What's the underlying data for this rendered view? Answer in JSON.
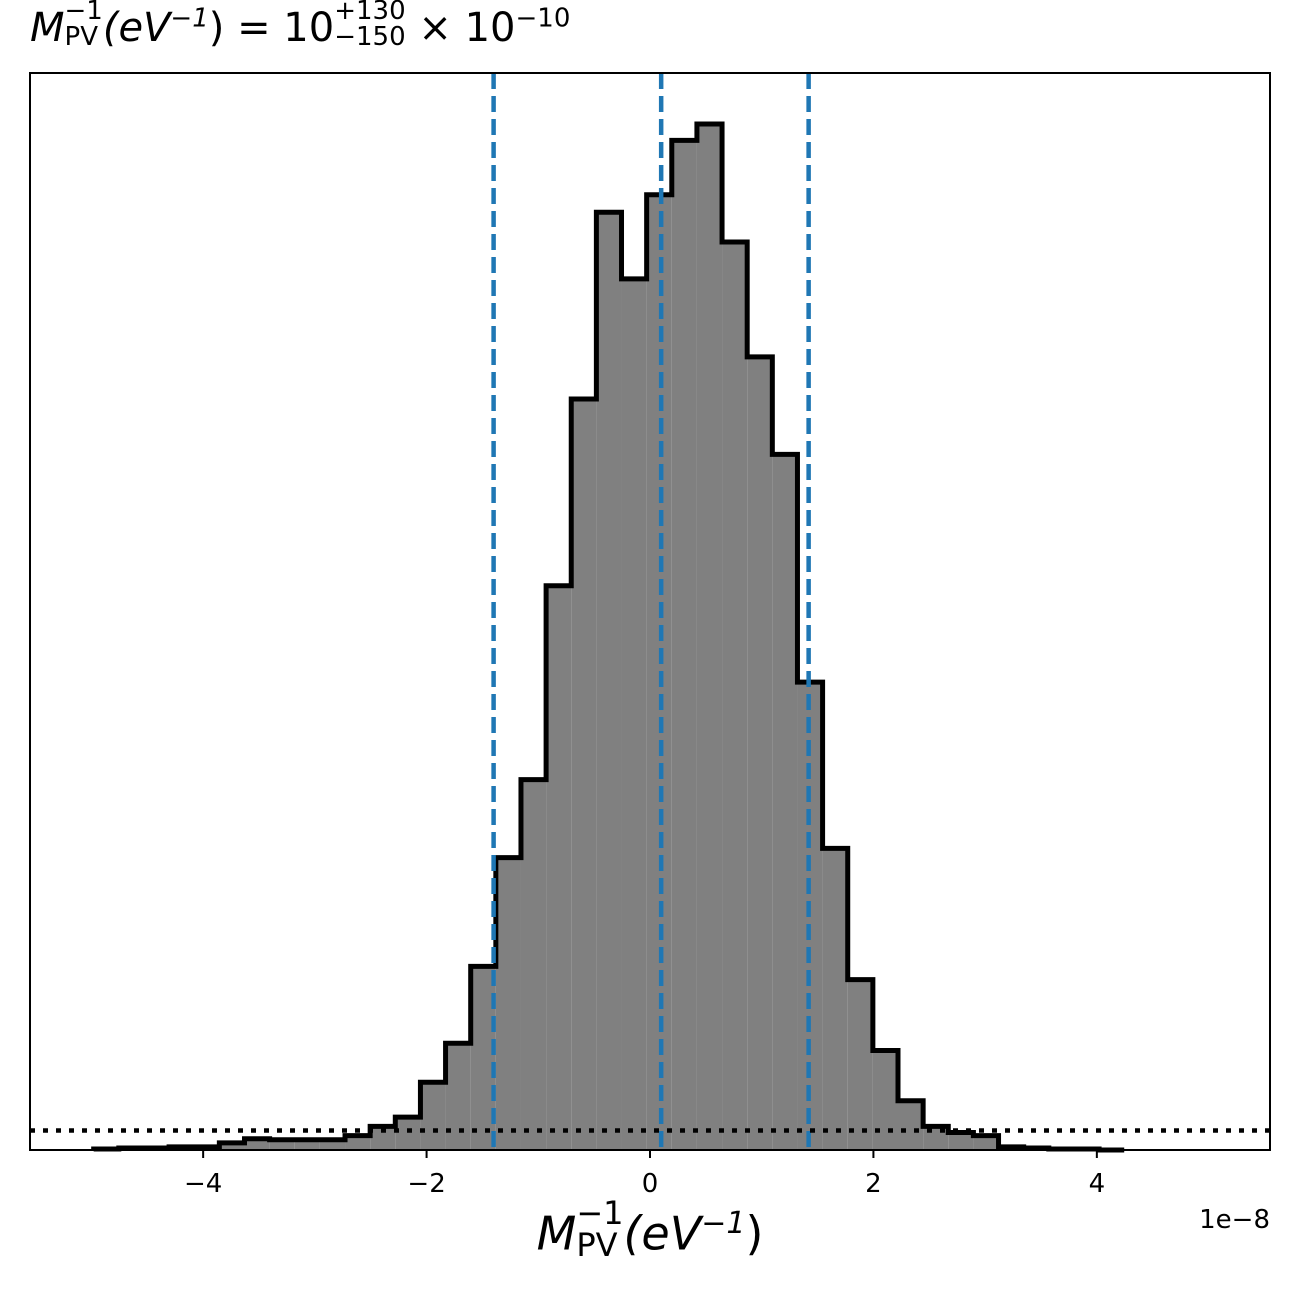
{
  "title": {
    "symbol": "M",
    "symbol_sup": "−1",
    "symbol_sub": "PV",
    "paren_text": "(eV",
    "paren_sup": "−1",
    "paren_close": ")",
    "equals": "= 10",
    "upper": "+130",
    "lower": "−150",
    "times": "× 10",
    "exponent": "−10"
  },
  "xlabel": {
    "symbol": "M",
    "symbol_sup": "−1",
    "symbol_sub": "PV",
    "paren_text": "(eV",
    "paren_sup": "−1",
    "paren_close": ")"
  },
  "offset_label": "1e−8",
  "chart_data": {
    "type": "histogram",
    "x_scale_factor": 1e-08,
    "xlim": [
      -5.55,
      5.55
    ],
    "ylim": [
      0,
      1
    ],
    "xticks": [
      -4,
      -2,
      0,
      2,
      4
    ],
    "xtick_labels": [
      "−4",
      "−2",
      "0",
      "2",
      "4"
    ],
    "yticks_visible": false,
    "bin_width": 0.225,
    "bin_start": -4.98,
    "counts": [
      0.001,
      0.002,
      0.002,
      0.003,
      0.003,
      0.007,
      0.011,
      0.01,
      0.01,
      0.01,
      0.014,
      0.023,
      0.032,
      0.066,
      0.104,
      0.179,
      0.285,
      0.361,
      0.55,
      0.732,
      0.914,
      0.849,
      0.931,
      0.984,
      1.0,
      0.885,
      0.773,
      0.678,
      0.456,
      0.294,
      0.166,
      0.097,
      0.048,
      0.023,
      0.017,
      0.014,
      0.003,
      0.002,
      0.001,
      0.001,
      0.0
    ],
    "bar_color": "#808080",
    "edge_color": "#000000",
    "vlines": [
      {
        "value": -1.4,
        "color": "#1f77b4",
        "style": "dashed"
      },
      {
        "value": 0.1,
        "color": "#1f77b4",
        "style": "dashed"
      },
      {
        "value": 1.42,
        "color": "#1f77b4",
        "style": "dashed"
      }
    ],
    "hline": {
      "value": 0.019,
      "color": "#000000",
      "style": "dotted"
    },
    "grid": false
  }
}
